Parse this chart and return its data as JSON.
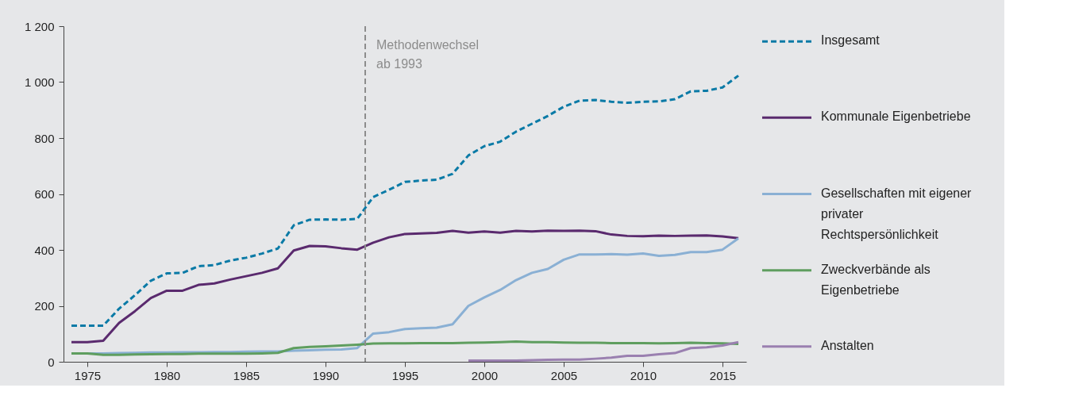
{
  "chart_data": {
    "type": "line",
    "x": [
      1974,
      1975,
      1976,
      1977,
      1978,
      1979,
      1980,
      1981,
      1982,
      1983,
      1984,
      1985,
      1986,
      1987,
      1988,
      1989,
      1990,
      1991,
      1992,
      1993,
      1994,
      1995,
      1996,
      1997,
      1998,
      1999,
      2000,
      2001,
      2002,
      2003,
      2004,
      2005,
      2006,
      2007,
      2008,
      2009,
      2010,
      2011,
      2012,
      2013,
      2014,
      2015,
      2016
    ],
    "series": [
      {
        "name": "Insgesamt",
        "color": "#0a7aa6",
        "line_style": "dashed",
        "values": [
          129,
          129,
          129,
          190,
          238,
          290,
          316,
          318,
          342,
          346,
          362,
          372,
          387,
          405,
          488,
          508,
          509,
          508,
          511,
          589,
          615,
          643,
          648,
          651,
          672,
          738,
          771,
          787,
          823,
          851,
          879,
          912,
          934,
          936,
          930,
          926,
          930,
          931,
          939,
          967,
          969,
          981,
          1023
        ]
      },
      {
        "name": "Kommunale Eigenbetriebe",
        "color": "#5a2a6e",
        "values": [
          70,
          70,
          75,
          139,
          181,
          228,
          254,
          254,
          275,
          280,
          294,
          306,
          318,
          334,
          398,
          414,
          413,
          406,
          401,
          426,
          445,
          457,
          459,
          461,
          468,
          462,
          466,
          462,
          468,
          466,
          469,
          468,
          469,
          467,
          455,
          450,
          449,
          451,
          450,
          451,
          452,
          448,
          442
        ]
      },
      {
        "name": "Gesellschaften mit eigener privater Rechtspersönlichkeit",
        "color": "#8ab0d4",
        "values": [
          30,
          30,
          30,
          31,
          32,
          33,
          33,
          34,
          34,
          35,
          35,
          36,
          37,
          37,
          40,
          41,
          43,
          44,
          49,
          101,
          106,
          117,
          120,
          122,
          134,
          200,
          230,
          257,
          292,
          318,
          332,
          365,
          384,
          384,
          385,
          383,
          387,
          379,
          382,
          392,
          392,
          401,
          441
        ]
      },
      {
        "name": "Zweckverbände als Eigenbetriebe",
        "color": "#5f9e5f",
        "values": [
          30,
          30,
          25,
          25,
          26,
          27,
          28,
          28,
          29,
          29,
          29,
          29,
          30,
          32,
          49,
          53,
          55,
          58,
          61,
          65,
          66,
          66,
          67,
          67,
          67,
          68,
          69,
          70,
          72,
          70,
          70,
          69,
          68,
          68,
          67,
          67,
          67,
          66,
          67,
          68,
          67,
          66,
          64
        ]
      },
      {
        "name": "Anstalten",
        "color": "#9a80b0",
        "values": [
          null,
          null,
          null,
          null,
          null,
          null,
          null,
          null,
          null,
          null,
          null,
          null,
          null,
          null,
          null,
          null,
          null,
          null,
          null,
          null,
          null,
          null,
          null,
          null,
          null,
          4,
          4,
          4,
          4,
          6,
          7,
          8,
          8,
          11,
          15,
          21,
          21,
          27,
          31,
          49,
          52,
          58,
          70
        ]
      }
    ],
    "xlim": [
      1973.5,
      2016.5
    ],
    "xticks": [
      1975,
      1980,
      1985,
      1990,
      1995,
      2000,
      2005,
      2010,
      2015
    ],
    "ylim": [
      0,
      1200
    ],
    "yticks": [
      0,
      200,
      400,
      600,
      800,
      {
        "value": 1000,
        "label": "1 000"
      },
      {
        "value": 1200,
        "label": "1 200"
      }
    ],
    "ref_lines": [
      {
        "axis": "x",
        "value": 1992.5,
        "label": "Methodenwechsel ab 1993",
        "color": "#8c8c8c",
        "line_style": "dashed"
      }
    ],
    "grid": false,
    "legend": "right"
  }
}
